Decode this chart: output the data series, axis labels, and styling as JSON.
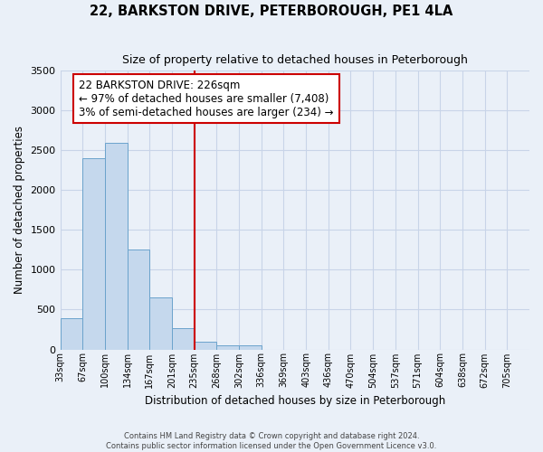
{
  "title": "22, BARKSTON DRIVE, PETERBOROUGH, PE1 4LA",
  "subtitle": "Size of property relative to detached houses in Peterborough",
  "xlabel": "Distribution of detached houses by size in Peterborough",
  "ylabel": "Number of detached properties",
  "categories": [
    "33sqm",
    "67sqm",
    "100sqm",
    "134sqm",
    "167sqm",
    "201sqm",
    "235sqm",
    "268sqm",
    "302sqm",
    "336sqm",
    "369sqm",
    "403sqm",
    "436sqm",
    "470sqm",
    "504sqm",
    "537sqm",
    "571sqm",
    "604sqm",
    "638sqm",
    "672sqm",
    "705sqm"
  ],
  "values": [
    390,
    2400,
    2600,
    1250,
    650,
    270,
    100,
    55,
    50,
    0,
    0,
    0,
    0,
    0,
    0,
    0,
    0,
    0,
    0,
    0,
    0
  ],
  "bar_color": "#c5d8ed",
  "bar_edge_color": "#6ba3cc",
  "grid_color": "#c8d4e8",
  "background_color": "#eaf0f8",
  "red_line_x": 6,
  "annotation_text_line1": "22 BARKSTON DRIVE: 226sqm",
  "annotation_text_line2": "← 97% of detached houses are smaller (7,408)",
  "annotation_text_line3": "3% of semi-detached houses are larger (234) →",
  "red_line_color": "#cc0000",
  "annotation_box_facecolor": "#ffffff",
  "annotation_box_edgecolor": "#cc0000",
  "ylim": [
    0,
    3500
  ],
  "yticks": [
    0,
    500,
    1000,
    1500,
    2000,
    2500,
    3000,
    3500
  ],
  "footer_line1": "Contains HM Land Registry data © Crown copyright and database right 2024.",
  "footer_line2": "Contains public sector information licensed under the Open Government Licence v3.0."
}
